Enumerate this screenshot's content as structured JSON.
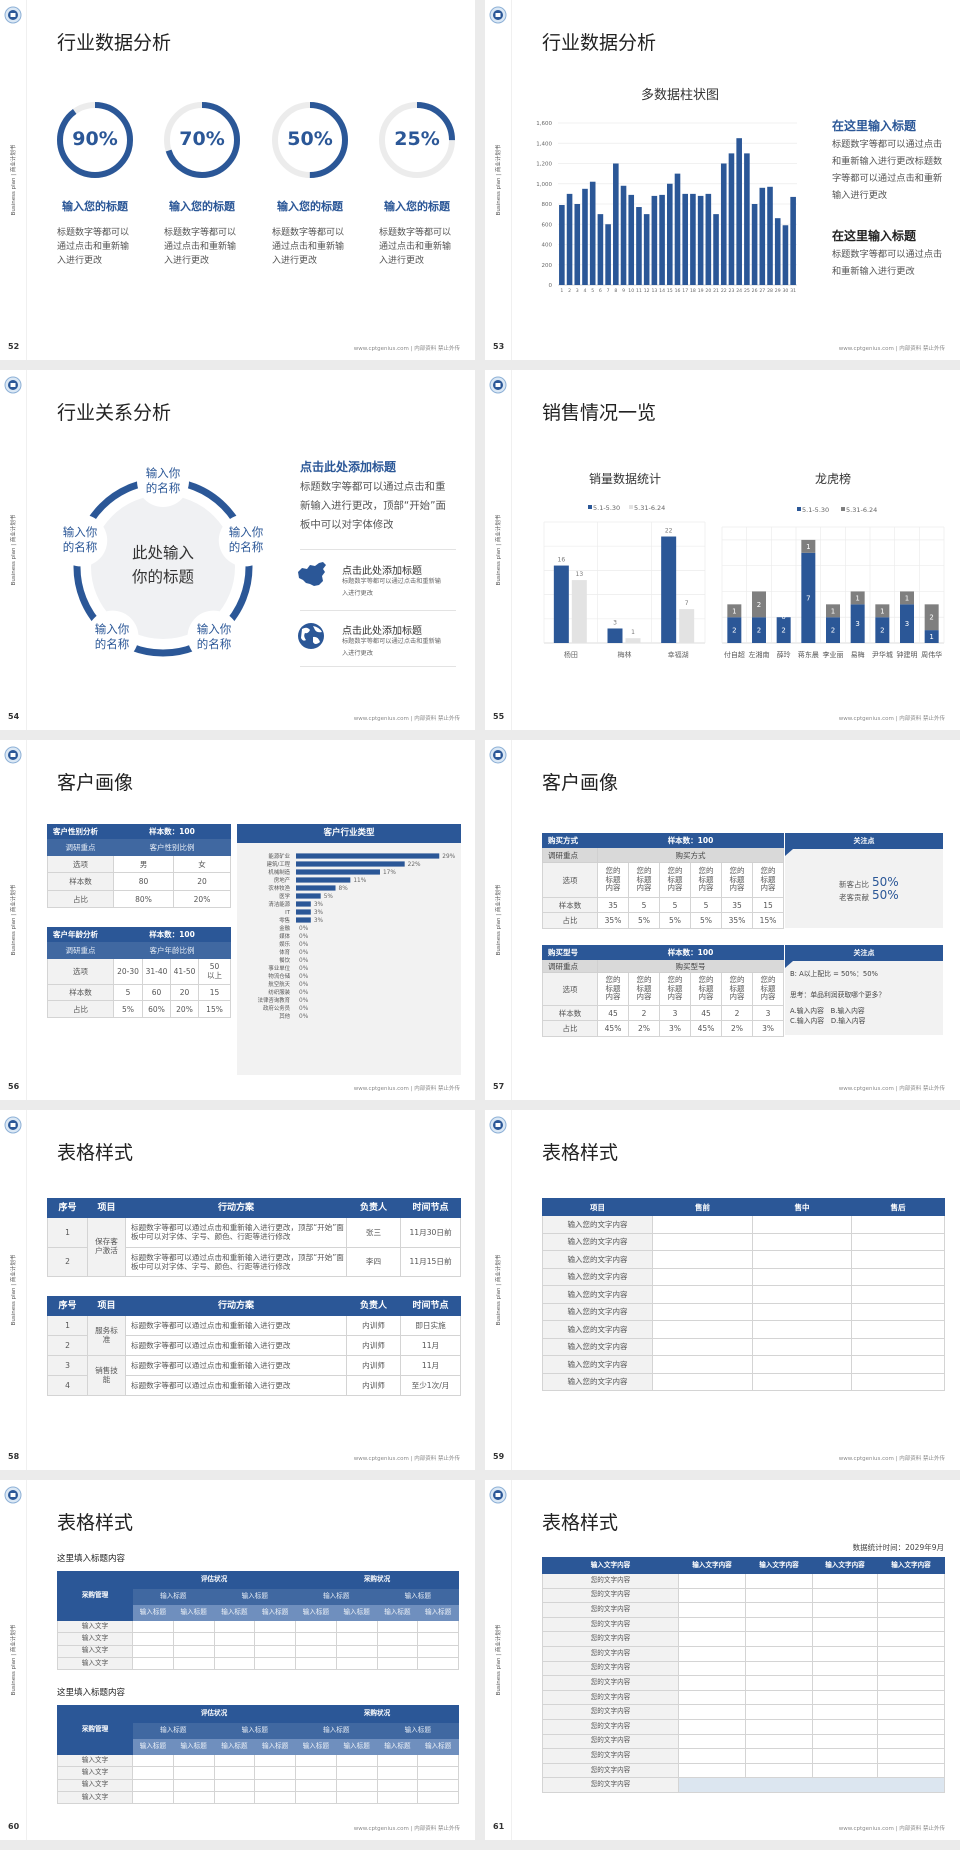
{
  "common": {
    "side_label": "Business plan | 商业计划书",
    "footer": "www.cptgenius.com | 内部资料 禁止外传"
  },
  "colors": {
    "primary": "#2b5797",
    "light_gray": "#f2f2f2",
    "mid_gray": "#7f7f7f",
    "pale_gray": "#e3e3e3",
    "panel_blue": "#dce6f0"
  },
  "slides": [
    {
      "page": "52",
      "title": "行业数据分析",
      "rings": [
        {
          "value": 90,
          "label": "90%",
          "heading": "输入您的标题",
          "body": "标题数字等都可以通过点击和重新输入进行更改"
        },
        {
          "value": 70,
          "label": "70%",
          "heading": "输入您的标题",
          "body": "标题数字等都可以通过点击和重新输入进行更改"
        },
        {
          "value": 50,
          "label": "50%",
          "heading": "输入您的标题",
          "body": "标题数字等都可以通过点击和重新输入进行更改"
        },
        {
          "value": 25,
          "label": "25%",
          "heading": "输入您的标题",
          "body": "标题数字等都可以通过点击和重新输入进行更改"
        }
      ]
    },
    {
      "page": "53",
      "title": "行业数据分析",
      "text_blocks": [
        {
          "heading": "在这里输入标题",
          "body": "标题数字等都可以通过点击和重新输入进行更改标题数字等都可以通过点击和重新输入进行更改"
        },
        {
          "heading": "在这里输入标题",
          "body": "标题数字等都可以通过点击和重新输入进行更改"
        }
      ]
    },
    {
      "page": "54",
      "title": "行业关系分析",
      "center": "此处输入你的标题",
      "nodes": [
        "输入你的名称",
        "输入你的名称",
        "输入你的名称",
        "输入你的名称",
        "输入你的名称"
      ],
      "heading": "点击此处添加标题",
      "body": "标题数字等都可以通过点击和重新输入进行更改，顶部“开始”面板中可以对字体修改",
      "items": [
        {
          "icon": "china-map-icon",
          "title": "点击此处添加标题",
          "body": "标题数字等都可以通过点击和重新输入进行更改"
        },
        {
          "icon": "globe-icon",
          "title": "点击此处添加标题",
          "body": "标题数字等都可以通过点击和重新输入进行更改"
        }
      ]
    },
    {
      "page": "55",
      "title": "销售情况一览"
    },
    {
      "page": "56",
      "title": "客户画像",
      "gender_table": {
        "rows": [
          [
            "客户性别分析",
            "样本数：100"
          ],
          [
            "调研重点",
            "客户性别比例"
          ],
          [
            "选项",
            "男",
            "女"
          ],
          [
            "样本数",
            "80",
            "20"
          ],
          [
            "占比",
            "80%",
            "20%"
          ]
        ]
      },
      "age_table": {
        "rows": [
          [
            "客户年龄分析",
            "样本数：100"
          ],
          [
            "调研重点",
            "客户年龄比例"
          ],
          [
            "选项",
            "20-30",
            "31-40",
            "41-50",
            "50以上"
          ],
          [
            "样本数",
            "5",
            "60",
            "20",
            "15"
          ],
          [
            "占比",
            "5%",
            "60%",
            "20%",
            "15%"
          ]
        ]
      }
    },
    {
      "page": "57",
      "title": "客户画像",
      "tables": [
        {
          "rows": [
            [
              "购买方式",
              "样本数：100"
            ],
            [
              "调研重点",
              "购买方式"
            ],
            [
              "选项",
              "您的标题内容",
              "您的标题内容",
              "您的标题内容",
              "您的标题内容",
              "您的标题内容",
              "您的标题内容"
            ],
            [
              "样本数",
              "35",
              "5",
              "5",
              "5",
              "35",
              "15"
            ],
            [
              "占比",
              "35%",
              "5%",
              "5%",
              "5%",
              "35%",
              "15%"
            ]
          ]
        },
        {
          "rows": [
            [
              "购买型号",
              "样本数：100"
            ],
            [
              "调研重点",
              "购买型号"
            ],
            [
              "选项",
              "您的标题内容",
              "您的标题内容",
              "您的标题内容",
              "您的标题内容",
              "您的标题内容",
              "您的标题内容"
            ],
            [
              "样本数",
              "45",
              "2",
              "3",
              "45",
              "2",
              "3"
            ],
            [
              "占比",
              "45%",
              "2%",
              "3%",
              "45%",
              "2%",
              "3%"
            ]
          ]
        }
      ],
      "panels": [
        {
          "title": "关注点",
          "stats": [
            {
              "label": "新客占比",
              "value": "50%"
            },
            {
              "label": "老客贡献",
              "value": "50%"
            }
          ]
        },
        {
          "title": "关注点",
          "lines": [
            "B: A以上配比 = 50%：50%",
            "思考：单品利润获取哪个更多？",
            "A.输入内容　B.输入内容",
            "C.输入内容　D.输入内容"
          ]
        }
      ]
    },
    {
      "page": "58",
      "title": "表格样式",
      "tables": [
        {
          "header": [
            "序号",
            "项目",
            "行动方案",
            "负责人",
            "时间节点"
          ],
          "groups": [
            {
              "name": "保存客户激活",
              "rows": [
                [
                  "1",
                  "标题数字等都可以通过点击和重新输入进行更改，顶部“开始”面板中可以对字体、字号、颜色、行距等进行修改",
                  "张三",
                  "11月30日前"
                ],
                [
                  "2",
                  "标题数字等都可以通过点击和重新输入进行更改，顶部“开始”面板中可以对字体、字号、颜色、行距等进行修改",
                  "李四",
                  "11月15日前"
                ]
              ]
            }
          ]
        },
        {
          "header": [
            "序号",
            "项目",
            "行动方案",
            "负责人",
            "时间节点"
          ],
          "groups": [
            {
              "name": "服务标准",
              "rows": [
                [
                  "1",
                  "标题数字等都可以通过点击和重新输入进行更改",
                  "内训师",
                  "即日实施"
                ],
                [
                  "2",
                  "标题数字等都可以通过点击和重新输入进行更改",
                  "内训师",
                  "11月"
                ]
              ]
            },
            {
              "name": "销售技能",
              "rows": [
                [
                  "3",
                  "标题数字等都可以通过点击和重新输入进行更改",
                  "内训师",
                  "11月"
                ],
                [
                  "4",
                  "标题数字等都可以通过点击和重新输入进行更改",
                  "内训师",
                  "至少1次/月"
                ]
              ]
            }
          ]
        }
      ]
    },
    {
      "page": "59",
      "title": "表格样式",
      "header": [
        "项目",
        "售前",
        "售中",
        "售后"
      ],
      "rows": [
        "输入您的文字内容",
        "输入您的文字内容",
        "输入您的文字内容",
        "输入您的文字内容",
        "输入您的文字内容",
        "输入您的文字内容",
        "输入您的文字内容",
        "输入您的文字内容",
        "输入您的文字内容",
        "输入您的文字内容"
      ]
    },
    {
      "page": "60",
      "title": "表格样式",
      "tables": [
        {
          "caption": "这里填入标题内容",
          "corner": "采购管理",
          "groups": [
            "评估状况",
            "采购状况"
          ],
          "sub": [
            "输入标题",
            "输入标题",
            "输入标题",
            "输入标题"
          ],
          "subsub": [
            "输入标题",
            "输入标题",
            "输入标题",
            "输入标题",
            "输入标题",
            "输入标题",
            "输入标题",
            "输入标题"
          ],
          "rows": [
            "输入文字",
            "输入文字",
            "输入文字",
            "输入文字"
          ]
        },
        {
          "caption": "这里填入标题内容",
          "corner": "采购管理",
          "groups": [
            "评估状况",
            "采购状况"
          ],
          "sub": [
            "输入标题",
            "输入标题",
            "输入标题",
            "输入标题"
          ],
          "subsub": [
            "输入标题",
            "输入标题",
            "输入标题",
            "输入标题",
            "输入标题",
            "输入标题",
            "输入标题",
            "输入标题"
          ],
          "rows": [
            "输入文字",
            "输入文字",
            "输入文字",
            "输入文字"
          ]
        }
      ]
    },
    {
      "page": "61",
      "title": "表格样式",
      "date": "数据统计时间：2029年9月",
      "header": [
        "输入文字内容",
        "输入文字内容",
        "输入文字内容",
        "输入文字内容",
        "输入文字内容"
      ],
      "rows": [
        "您的文字内容",
        "您的文字内容",
        "您的文字内容",
        "您的文字内容",
        "您的文字内容",
        "您的文字内容",
        "您的文字内容",
        "您的文字内容",
        "您的文字内容",
        "您的文字内容",
        "您的文字内容",
        "您的文字内容",
        "您的文字内容",
        "您的文字内容",
        "您的文字内容"
      ]
    }
  ],
  "chart_data": [
    {
      "type": "bar",
      "title": "多数据柱状图",
      "grid": true,
      "categories": [
        "1",
        "2",
        "3",
        "4",
        "5",
        "6",
        "7",
        "8",
        "9",
        "10",
        "11",
        "12",
        "13",
        "14",
        "15",
        "16",
        "17",
        "18",
        "19",
        "20",
        "21",
        "22",
        "23",
        "24",
        "25",
        "26",
        "27",
        "28",
        "29",
        "30",
        "31"
      ],
      "values": [
        790,
        900,
        800,
        950,
        1020,
        700,
        600,
        1200,
        980,
        890,
        770,
        700,
        880,
        890,
        1000,
        1100,
        900,
        900,
        880,
        900,
        700,
        1200,
        1300,
        1450,
        1300,
        800,
        960,
        970,
        660,
        590,
        870
      ],
      "ylim": [
        0,
        1600
      ],
      "yticks": [
        0,
        200,
        400,
        600,
        800,
        1000,
        1200,
        1400,
        1600
      ],
      "ytick_labels": [
        "0",
        "200",
        "400",
        "600",
        "800",
        "1,000",
        "1,200",
        "1,400",
        "1,600"
      ],
      "color": "#2b5797"
    },
    {
      "type": "bar",
      "title": "销量数据统计",
      "legend": "top",
      "categories": [
        "杨田",
        "梅林",
        "幸福湖"
      ],
      "series": [
        {
          "name": "5.1-5.30",
          "values": [
            16,
            3,
            22
          ],
          "color": "#2b5797"
        },
        {
          "name": "5.31-6.24",
          "values": [
            13,
            1,
            7
          ],
          "color": "#e3e3e3"
        }
      ],
      "ylim": [
        0,
        25
      ]
    },
    {
      "type": "stacked-bar",
      "title": "龙虎榜",
      "legend": "top",
      "categories": [
        "付自超",
        "左湘南",
        "薛玲",
        "蒋东晨",
        "李业丽",
        "易梅",
        "尹华城",
        "钟建明",
        "周伟华"
      ],
      "series": [
        {
          "name": "5.1-5.30",
          "values": [
            2,
            2,
            2,
            7,
            2,
            3,
            2,
            3,
            1
          ],
          "color": "#2b5797"
        },
        {
          "name": "5.31-6.24",
          "values": [
            1,
            2,
            0,
            1,
            1,
            1,
            1,
            1,
            2
          ],
          "color": "#7f7f7f"
        }
      ],
      "ylim": [
        0,
        9
      ]
    },
    {
      "type": "horizontal-bar",
      "title": "客户行业类型",
      "categories": [
        "能源矿业",
        "建筑/工程",
        "机械制造",
        "房地产",
        "农林牧渔",
        "医学",
        "清洁能源",
        "IT",
        "零售",
        "金融",
        "媒体",
        "娱乐",
        "体育",
        "餐饮",
        "事业单位",
        "物流仓储",
        "航空航天",
        "纺织服装",
        "法律咨询教育",
        "政府公务员",
        "其他"
      ],
      "values": [
        29,
        22,
        17,
        11,
        8,
        5,
        3,
        3,
        3,
        0,
        0,
        0,
        0,
        0,
        0,
        0,
        0,
        0,
        0,
        0,
        0
      ],
      "value_labels": [
        "29%",
        "22%",
        "17%",
        "11%",
        "8%",
        "5%",
        "3%",
        "3%",
        "3%",
        "0%",
        "0%",
        "0%",
        "0%",
        "0%",
        "0%",
        "0%",
        "0%",
        "0%",
        "0%",
        "0%",
        "0%"
      ],
      "xlim": [
        0,
        30
      ],
      "color": "#2b5797"
    }
  ]
}
